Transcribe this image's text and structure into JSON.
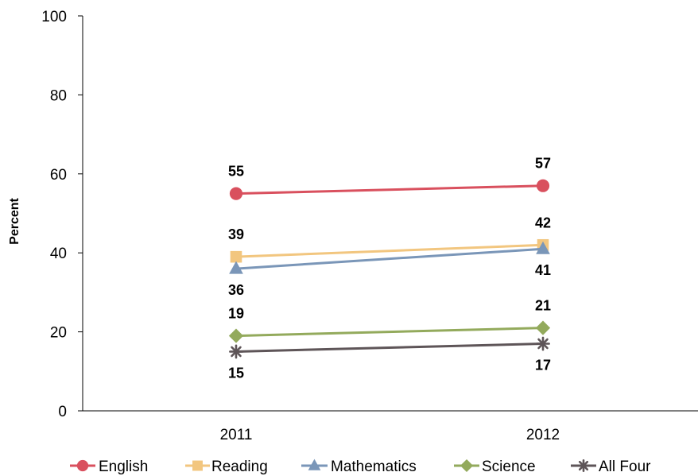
{
  "chart_data": {
    "type": "line",
    "title": "",
    "xlabel": "",
    "ylabel": "Percent",
    "x": [
      "2011",
      "2012"
    ],
    "ylim": [
      0,
      100
    ],
    "yticks": [
      0,
      20,
      40,
      60,
      80,
      100
    ],
    "grid": false,
    "legend_position": "bottom",
    "series": [
      {
        "name": "English",
        "values": [
          55,
          57
        ],
        "color": "#d9505e",
        "marker": "circle",
        "label_pos": [
          "above",
          "above"
        ]
      },
      {
        "name": "Reading",
        "values": [
          39,
          42
        ],
        "color": "#f2c67f",
        "marker": "square",
        "label_pos": [
          "above",
          "above"
        ]
      },
      {
        "name": "Mathematics",
        "values": [
          36,
          41
        ],
        "color": "#7a96b8",
        "marker": "triangle",
        "label_pos": [
          "below",
          "below"
        ]
      },
      {
        "name": "Science",
        "values": [
          19,
          21
        ],
        "color": "#93aa5c",
        "marker": "diamond",
        "label_pos": [
          "above",
          "above"
        ]
      },
      {
        "name": "All Four",
        "values": [
          15,
          17
        ],
        "color": "#5e5558",
        "marker": "star",
        "label_pos": [
          "below",
          "below"
        ]
      }
    ]
  }
}
